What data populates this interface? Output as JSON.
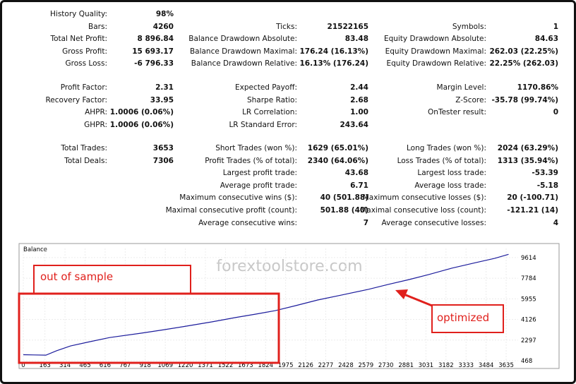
{
  "stats": [
    [
      [
        {
          "label": "History Quality:",
          "value": "98%"
        },
        null,
        null
      ],
      [
        {
          "label": "Bars:",
          "value": "4260"
        },
        {
          "label": "Ticks:",
          "value": "21522165"
        },
        {
          "label": "Symbols:",
          "value": "1"
        }
      ],
      [
        {
          "label": "Total Net Profit:",
          "value": "8 896.84"
        },
        {
          "label": "Balance Drawdown Absolute:",
          "value": "83.48"
        },
        {
          "label": "Equity Drawdown Absolute:",
          "value": "84.63"
        }
      ],
      [
        {
          "label": "Gross Profit:",
          "value": "15 693.17"
        },
        {
          "label": "Balance Drawdown Maximal:",
          "value": "176.24 (16.13%)"
        },
        {
          "label": "Equity Drawdown Maximal:",
          "value": "262.03 (22.25%)"
        }
      ],
      [
        {
          "label": "Gross Loss:",
          "value": "-6 796.33"
        },
        {
          "label": "Balance Drawdown Relative:",
          "value": "16.13% (176.24)"
        },
        {
          "label": "Equity Drawdown Relative:",
          "value": "22.25% (262.03)"
        }
      ]
    ],
    [
      [
        {
          "label": "Profit Factor:",
          "value": "2.31"
        },
        {
          "label": "Expected Payoff:",
          "value": "2.44"
        },
        {
          "label": "Margin Level:",
          "value": "1170.86%"
        }
      ],
      [
        {
          "label": "Recovery Factor:",
          "value": "33.95"
        },
        {
          "label": "Sharpe Ratio:",
          "value": "2.68"
        },
        {
          "label": "Z-Score:",
          "value": "-35.78 (99.74%)"
        }
      ],
      [
        {
          "label": "AHPR:",
          "value": "1.0006 (0.06%)"
        },
        {
          "label": "LR Correlation:",
          "value": "1.00"
        },
        {
          "label": "OnTester result:",
          "value": "0"
        }
      ],
      [
        {
          "label": "GHPR:",
          "value": "1.0006 (0.06%)"
        },
        {
          "label": "LR Standard Error:",
          "value": "243.64"
        },
        null
      ]
    ],
    [
      [
        {
          "label": "Total Trades:",
          "value": "3653"
        },
        {
          "label": "Short Trades (won %):",
          "value": "1629 (65.01%)"
        },
        {
          "label": "Long Trades (won %):",
          "value": "2024 (63.29%)"
        }
      ],
      [
        {
          "label": "Total Deals:",
          "value": "7306"
        },
        {
          "label": "Profit Trades (% of total):",
          "value": "2340 (64.06%)"
        },
        {
          "label": "Loss Trades (% of total):",
          "value": "1313 (35.94%)"
        }
      ],
      [
        null,
        {
          "label": "Largest profit trade:",
          "value": "43.68"
        },
        {
          "label": "Largest loss trade:",
          "value": "-53.39"
        }
      ],
      [
        null,
        {
          "label": "Average profit trade:",
          "value": "6.71"
        },
        {
          "label": "Average loss trade:",
          "value": "-5.18"
        }
      ],
      [
        null,
        {
          "label": "Maximum consecutive wins ($):",
          "value": "40 (501.88)"
        },
        {
          "label": "Maximum consecutive losses ($):",
          "value": "20 (-100.71)"
        }
      ],
      [
        null,
        {
          "label": "Maximal consecutive profit (count):",
          "value": "501.88 (40)"
        },
        {
          "label": "Maximal consecutive loss (count):",
          "value": "-121.21 (14)"
        }
      ],
      [
        null,
        {
          "label": "Average consecutive wins:",
          "value": "7"
        },
        {
          "label": "Average consecutive losses:",
          "value": "4"
        }
      ]
    ]
  ],
  "chart_data": {
    "type": "line",
    "title": "Balance",
    "watermark": "forextoolstore.com",
    "annotations": [
      "out of sample",
      "optimized"
    ],
    "x": [
      0,
      80,
      170,
      250,
      356,
      500,
      650,
      887,
      1050,
      1200,
      1419,
      1600,
      1750,
      1897,
      2050,
      2216,
      2400,
      2600,
      2747,
      2900,
      3050,
      3225,
      3400,
      3550,
      3653
    ],
    "series": [
      {
        "name": "Balance",
        "color": "#1c1c9c",
        "values": [
          1000,
          980,
          960,
          1350,
          1780,
          2150,
          2520,
          2910,
          3200,
          3480,
          3910,
          4300,
          4600,
          4910,
          5350,
          5850,
          6300,
          6800,
          7230,
          7650,
          8100,
          8670,
          9150,
          9550,
          9896.84
        ]
      }
    ],
    "xlim": [
      0,
      3725
    ],
    "ylim": [
      468,
      10420
    ],
    "xticks": [
      0,
      163,
      314,
      465,
      616,
      767,
      918,
      1069,
      1220,
      1371,
      1522,
      1673,
      1824,
      1975,
      2126,
      2277,
      2428,
      2579,
      2730,
      2881,
      3031,
      3182,
      3333,
      3484,
      3635
    ],
    "yticks": [
      468,
      2297,
      4126,
      5955,
      7784,
      9614
    ],
    "grid": true
  }
}
